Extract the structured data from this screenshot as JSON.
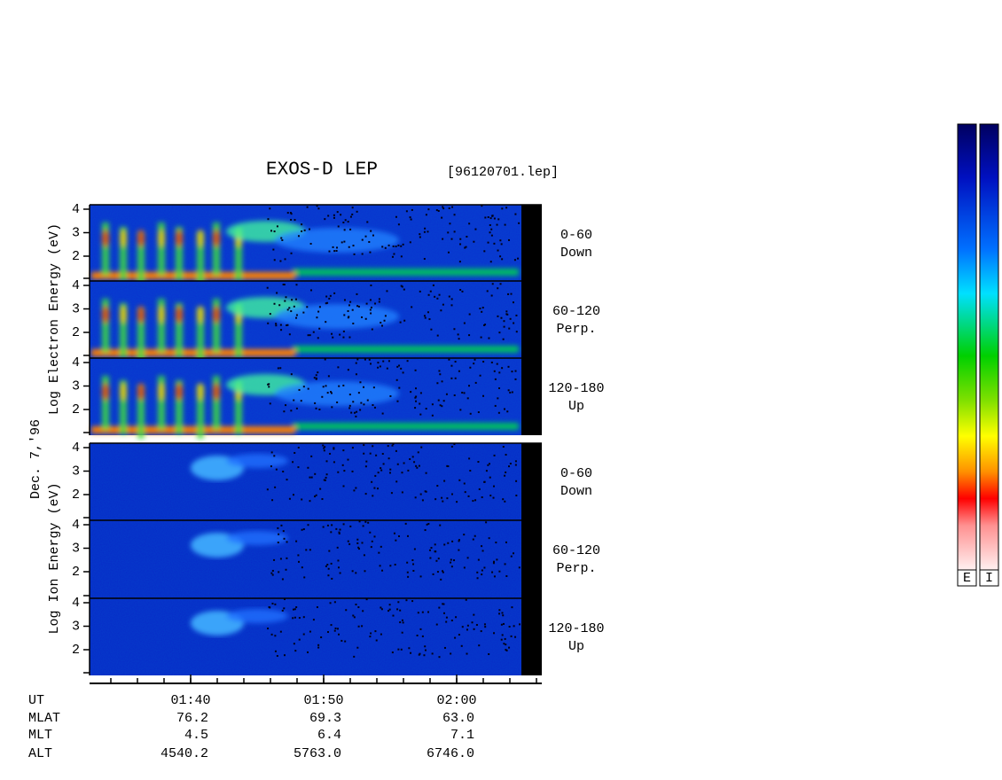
{
  "header": {
    "title": "EXOS-D LEP",
    "file": "[96120701.lep]",
    "date": "Dec. 7,'96"
  },
  "axis_labels": {
    "electron": "Log  Electron  Energy  (eV)",
    "ion": "Log  Ion  Energy  (eV)"
  },
  "panels": [
    {
      "angle": "0-60",
      "direction": "Down",
      "yticks": [
        "2",
        "3",
        "4"
      ]
    },
    {
      "angle": "60-120",
      "direction": "Perp.",
      "yticks": [
        "2",
        "3",
        "4"
      ]
    },
    {
      "angle": "120-180",
      "direction": "Up",
      "yticks": [
        "2",
        "3",
        "4"
      ]
    },
    {
      "angle": "0-60",
      "direction": "Down",
      "yticks": [
        "2",
        "3",
        "4"
      ]
    },
    {
      "angle": "60-120",
      "direction": "Perp.",
      "yticks": [
        "2",
        "3",
        "4"
      ]
    },
    {
      "angle": "120-180",
      "direction": "Up",
      "yticks": [
        "2",
        "3",
        "4"
      ]
    }
  ],
  "orbit_table": {
    "rows": [
      {
        "label": "UT",
        "values": [
          "01:40",
          "01:50",
          "02:00"
        ]
      },
      {
        "label": "MLAT",
        "values": [
          "76.2",
          "69.3",
          "63.0"
        ]
      },
      {
        "label": "MLT",
        "values": [
          "4.5",
          "6.4",
          "7.1"
        ]
      },
      {
        "label": "ALT",
        "values": [
          "4540.2",
          "5763.0",
          "6746.0"
        ]
      }
    ]
  },
  "colorbars": [
    "E",
    "I"
  ]
}
